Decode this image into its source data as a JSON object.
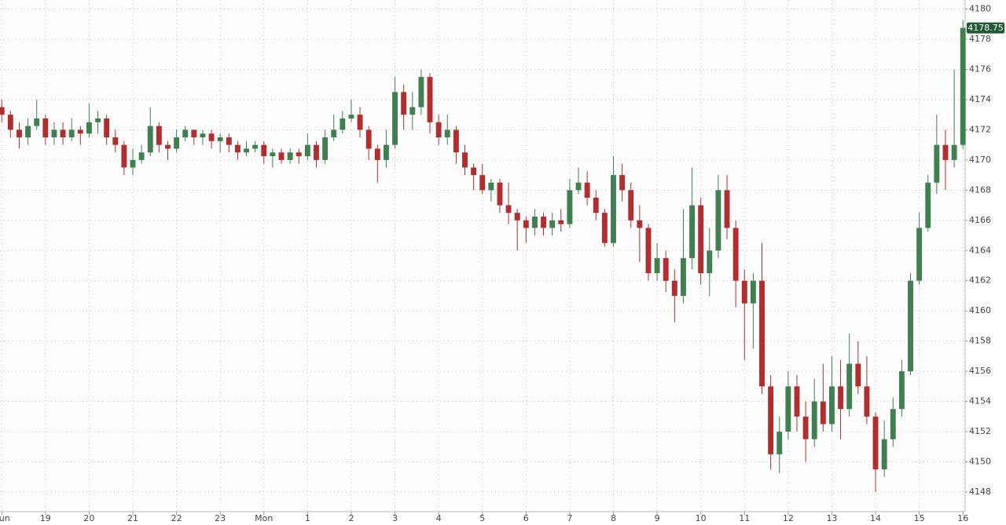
{
  "chart_data": {
    "type": "candlestick",
    "x": [
      0.0,
      0.2,
      0.4,
      0.6,
      0.8,
      1.0,
      1.2,
      1.4,
      1.6,
      1.8,
      2.0,
      2.2,
      2.4,
      2.6,
      2.8,
      3.0,
      3.2,
      3.4,
      3.6,
      3.8,
      4.0,
      4.2,
      4.4,
      4.6,
      4.8,
      5.0,
      5.2,
      5.4,
      5.6,
      5.8,
      6.0,
      6.2,
      6.4,
      6.6,
      6.8,
      7.0,
      7.2,
      7.4,
      7.6,
      7.8,
      8.0,
      8.2,
      8.4,
      8.6,
      8.8,
      9.0,
      9.2,
      9.4,
      9.6,
      9.8,
      10.0,
      10.2,
      10.4,
      10.6,
      10.8,
      11.0,
      11.2,
      11.4,
      11.6,
      11.8,
      12.0,
      12.2,
      12.4,
      12.6,
      12.8,
      13.0,
      13.2,
      13.4,
      13.6,
      13.8,
      14.0,
      14.2,
      14.4,
      14.6,
      14.8,
      15.0,
      15.2,
      15.4,
      15.6,
      15.8,
      16.0,
      16.2,
      16.4,
      16.6,
      16.8,
      17.0,
      17.2,
      17.4,
      17.6,
      17.8,
      18.0,
      18.2,
      18.4,
      18.6,
      18.8,
      19.0,
      19.2,
      19.4,
      19.6,
      19.8,
      20.0,
      20.2,
      20.4,
      20.6,
      20.8,
      21.0,
      21.2,
      21.4,
      21.6,
      21.8,
      22.0
    ],
    "open": [
      4173.5,
      4173.0,
      4172.0,
      4171.5,
      4172.25,
      4172.75,
      4171.5,
      4172.0,
      4171.5,
      4172.0,
      4171.75,
      4172.5,
      4172.75,
      4171.5,
      4171.0,
      4169.5,
      4170.0,
      4170.5,
      4172.25,
      4171.0,
      4170.75,
      4171.5,
      4172.0,
      4171.5,
      4171.75,
      4171.25,
      4171.5,
      4171.0,
      4170.5,
      4170.75,
      4171.0,
      4170.25,
      4170.5,
      4170.0,
      4170.5,
      4170.25,
      4171.0,
      4170.0,
      4171.5,
      4172.0,
      4172.75,
      4173.0,
      4172.0,
      4170.75,
      4170.0,
      4171.0,
      4174.5,
      4173.0,
      4173.5,
      4175.5,
      4172.5,
      4171.5,
      4172.0,
      4170.5,
      4169.5,
      4169.0,
      4168.0,
      4168.5,
      4167.0,
      4166.5,
      4166.0,
      4165.5,
      4166.25,
      4165.5,
      4166.0,
      4165.75,
      4168.0,
      4168.5,
      4167.5,
      4166.5,
      4164.5,
      4169.0,
      4168.0,
      4166.0,
      4165.5,
      4162.5,
      4163.5,
      4162.0,
      4161.0,
      4163.5,
      4167.0,
      4162.5,
      4164.0,
      4168.0,
      4165.5,
      4162.0,
      4160.5,
      4162.0,
      4155.0,
      4150.5,
      4152.0,
      4155.0,
      4153.0,
      4151.5,
      4154.0,
      4152.5,
      4155.0,
      4153.5,
      4156.5,
      4155.0,
      4153.0,
      4149.5,
      4151.5,
      4153.5,
      4156.0,
      4162.0,
      4165.5,
      4168.5,
      4171.0,
      4170.0,
      4171.0
    ],
    "high": [
      4174.0,
      4173.25,
      4172.5,
      4172.75,
      4174.0,
      4173.0,
      4172.5,
      4172.5,
      4172.75,
      4172.25,
      4173.75,
      4173.25,
      4173.0,
      4172.0,
      4171.25,
      4170.75,
      4171.0,
      4173.5,
      4172.5,
      4171.25,
      4172.0,
      4172.25,
      4172.0,
      4172.0,
      4172.0,
      4171.75,
      4171.75,
      4171.25,
      4171.25,
      4171.25,
      4171.25,
      4170.75,
      4170.75,
      4170.75,
      4170.75,
      4171.75,
      4171.25,
      4172.0,
      4173.0,
      4173.25,
      4174.0,
      4173.5,
      4172.25,
      4171.0,
      4172.0,
      4175.5,
      4175.0,
      4174.5,
      4176.0,
      4175.75,
      4173.0,
      4173.0,
      4172.25,
      4171.0,
      4169.75,
      4169.75,
      4168.75,
      4168.75,
      4168.5,
      4166.75,
      4166.25,
      4166.75,
      4166.5,
      4166.5,
      4166.75,
      4168.75,
      4169.5,
      4169.25,
      4168.0,
      4166.75,
      4170.25,
      4169.75,
      4168.5,
      4167.0,
      4165.75,
      4164.5,
      4164.0,
      4162.75,
      4166.75,
      4169.5,
      4167.5,
      4165.5,
      4169.0,
      4169.0,
      4166.0,
      4162.75,
      4162.5,
      4164.5,
      4155.75,
      4153.0,
      4156.0,
      4155.75,
      4154.0,
      4155.5,
      4156.5,
      4157.0,
      4156.75,
      4158.5,
      4158.0,
      4157.0,
      4153.25,
      4152.75,
      4154.25,
      4156.75,
      4162.5,
      4166.5,
      4169.0,
      4173.0,
      4172.0,
      4176.0,
      4179.25
    ],
    "low": [
      4172.5,
      4171.5,
      4170.75,
      4171.0,
      4172.0,
      4171.0,
      4171.0,
      4171.0,
      4171.25,
      4171.0,
      4171.5,
      4171.75,
      4171.0,
      4170.5,
      4169.0,
      4169.0,
      4169.75,
      4170.25,
      4170.5,
      4170.0,
      4170.5,
      4171.25,
      4171.0,
      4171.0,
      4170.75,
      4170.5,
      4170.5,
      4170.0,
      4170.25,
      4170.5,
      4169.75,
      4169.5,
      4169.75,
      4169.75,
      4169.75,
      4170.0,
      4169.5,
      4169.75,
      4171.25,
      4171.75,
      4172.5,
      4171.5,
      4170.0,
      4168.5,
      4169.5,
      4170.75,
      4172.0,
      4172.0,
      4173.0,
      4171.75,
      4171.0,
      4171.0,
      4169.75,
      4169.0,
      4168.0,
      4167.75,
      4167.25,
      4166.5,
      4165.75,
      4164.0,
      4164.5,
      4165.0,
      4165.0,
      4165.0,
      4165.25,
      4165.5,
      4167.75,
      4167.0,
      4166.0,
      4164.25,
      4164.25,
      4167.25,
      4165.5,
      4163.25,
      4162.0,
      4162.0,
      4161.25,
      4159.25,
      4160.5,
      4162.75,
      4161.75,
      4161.0,
      4163.5,
      4164.75,
      4160.25,
      4156.75,
      4157.5,
      4154.5,
      4149.5,
      4149.25,
      4151.5,
      4152.0,
      4150.0,
      4151.0,
      4152.0,
      4152.0,
      4151.5,
      4153.0,
      4154.5,
      4152.5,
      4148.0,
      4149.0,
      4151.0,
      4153.0,
      4155.75,
      4161.75,
      4165.25,
      4167.75,
      4168.0,
      4169.5,
      4170.75
    ],
    "close": [
      4173.0,
      4172.0,
      4171.5,
      4172.25,
      4172.75,
      4171.5,
      4172.0,
      4171.5,
      4172.0,
      4171.75,
      4172.5,
      4172.75,
      4171.5,
      4171.0,
      4169.5,
      4170.0,
      4170.5,
      4172.25,
      4171.0,
      4170.75,
      4171.5,
      4172.0,
      4171.5,
      4171.75,
      4171.25,
      4171.5,
      4171.0,
      4170.5,
      4170.75,
      4171.0,
      4170.25,
      4170.5,
      4170.0,
      4170.5,
      4170.25,
      4171.0,
      4170.0,
      4171.5,
      4172.0,
      4172.75,
      4173.0,
      4172.0,
      4170.75,
      4170.0,
      4171.0,
      4174.5,
      4173.0,
      4173.5,
      4175.5,
      4172.5,
      4171.5,
      4172.0,
      4170.5,
      4169.5,
      4169.0,
      4168.0,
      4168.5,
      4167.0,
      4166.5,
      4166.0,
      4165.5,
      4166.25,
      4165.5,
      4166.0,
      4165.75,
      4168.0,
      4168.5,
      4167.5,
      4166.5,
      4164.5,
      4169.0,
      4168.0,
      4166.0,
      4165.5,
      4162.5,
      4163.5,
      4162.0,
      4161.0,
      4163.5,
      4167.0,
      4162.5,
      4164.0,
      4168.0,
      4165.5,
      4162.0,
      4160.5,
      4162.0,
      4155.0,
      4150.5,
      4152.0,
      4155.0,
      4153.0,
      4151.5,
      4154.0,
      4152.5,
      4155.0,
      4153.5,
      4156.5,
      4155.0,
      4153.0,
      4149.5,
      4151.5,
      4153.5,
      4156.0,
      4162.0,
      4165.5,
      4168.5,
      4171.0,
      4170.0,
      4171.0,
      4178.75
    ],
    "up_color": "#3f7f50",
    "down_color": "#b22e2e",
    "last_value": 4178.75,
    "last_color": "#1f5a33",
    "xlim": [
      -0.04,
      22.05
    ],
    "ylim": [
      4146.7,
      4180.6
    ],
    "xticks": [
      {
        "value": 0,
        "label": "Sun"
      },
      {
        "value": 1,
        "label": "19"
      },
      {
        "value": 2,
        "label": "20"
      },
      {
        "value": 3,
        "label": "21"
      },
      {
        "value": 4,
        "label": "22"
      },
      {
        "value": 5,
        "label": "23"
      },
      {
        "value": 6,
        "label": "Mon"
      },
      {
        "value": 7,
        "label": "1"
      },
      {
        "value": 8,
        "label": "2"
      },
      {
        "value": 9,
        "label": "3"
      },
      {
        "value": 10,
        "label": "4"
      },
      {
        "value": 11,
        "label": "5"
      },
      {
        "value": 12,
        "label": "6"
      },
      {
        "value": 13,
        "label": "7"
      },
      {
        "value": 14,
        "label": "8"
      },
      {
        "value": 15,
        "label": "9"
      },
      {
        "value": 16,
        "label": "10"
      },
      {
        "value": 17,
        "label": "11"
      },
      {
        "value": 18,
        "label": "12"
      },
      {
        "value": 19,
        "label": "13"
      },
      {
        "value": 20,
        "label": "14"
      },
      {
        "value": 21,
        "label": "15"
      },
      {
        "value": 22,
        "label": "16"
      }
    ],
    "yticks": [
      4148,
      4150,
      4152,
      4154,
      4156,
      4158,
      4160,
      4162,
      4164,
      4166,
      4168,
      4170,
      4172,
      4174,
      4176,
      4178,
      4180
    ],
    "grid": true
  }
}
